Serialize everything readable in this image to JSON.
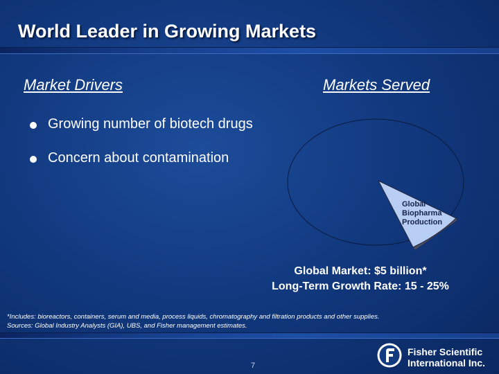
{
  "slide": {
    "title": "World Leader in Growing Markets",
    "page_number": "7"
  },
  "left": {
    "heading": "Market Drivers",
    "bullets": [
      "Growing number of biotech drugs",
      "Concern about contamination"
    ]
  },
  "right": {
    "heading": "Markets Served",
    "slice_label_lines": [
      "Global",
      "Biopharma",
      "Production"
    ],
    "market_line": "Global Market: $5 billion*",
    "growth_line": "Long-Term Growth Rate: 15 - 25%"
  },
  "footnotes": {
    "includes": "*Includes: bioreactors, containers, serum and media, process liquids, chromatography and filtration products and other supplies.",
    "sources": "Sources: Global Industry Analysts (GIA), UBS, and Fisher management estimates."
  },
  "logo": {
    "line1": "Fisher Scientific",
    "line2": "International Inc."
  },
  "colors": {
    "background": "#123a80",
    "slice_fill": "#b8cdf2",
    "slice_side": "#4a4e66"
  }
}
